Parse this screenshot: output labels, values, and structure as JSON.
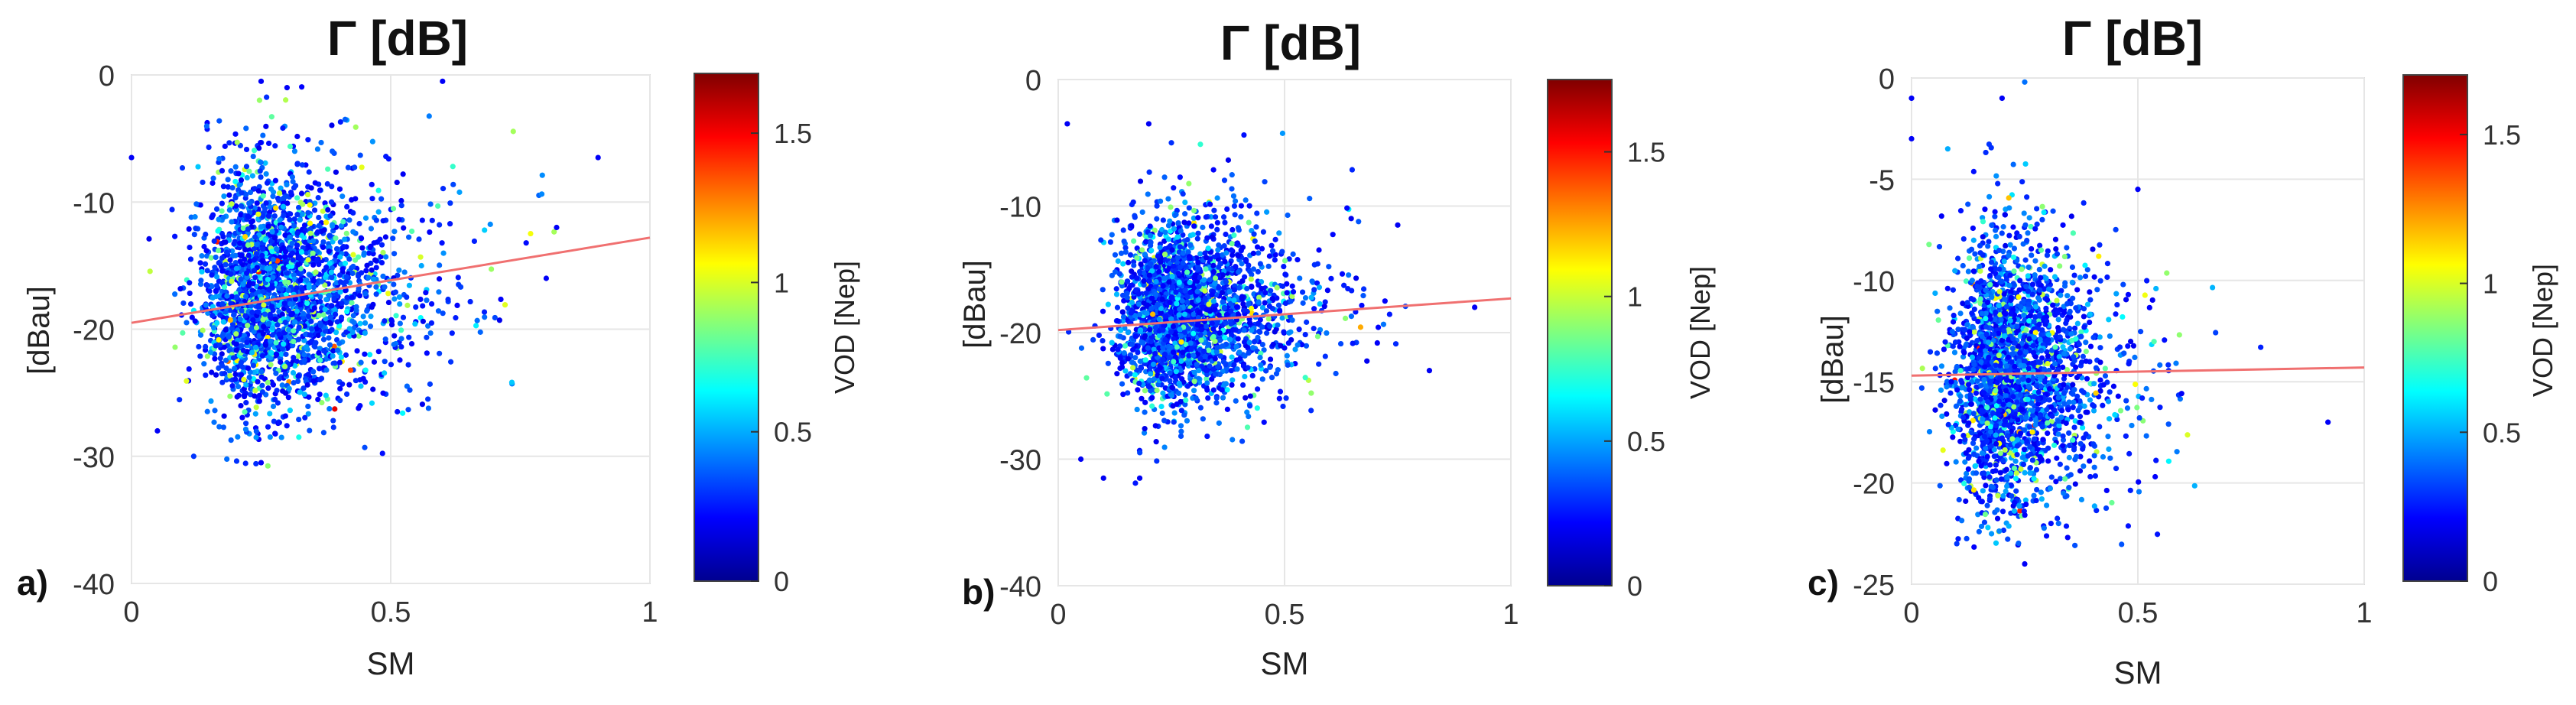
{
  "figure": {
    "panels": [
      {
        "letter": "a)",
        "title": "Γ [dB]",
        "xlabel": "SM",
        "ylabel": "[dBau]",
        "colorbar_label": "VOD [Nep]"
      },
      {
        "letter": "b)",
        "title": "Γ [dB]",
        "xlabel": "SM",
        "ylabel": "[dBau]",
        "colorbar_label": "VOD [Nep]"
      },
      {
        "letter": "c)",
        "title": "Γ [dB]",
        "xlabel": "SM",
        "ylabel": "[dBau]",
        "colorbar_label": "VOD [Nep]"
      }
    ]
  },
  "chart_data": [
    {
      "type": "scatter",
      "title": "Γ [dB]",
      "xlabel": "SM",
      "ylabel": "[dBau]",
      "xlim": [
        0,
        1
      ],
      "ylim": [
        -40,
        0
      ],
      "xticks": [
        0,
        0.5,
        1
      ],
      "yticks": [
        0,
        -10,
        -20,
        -30,
        -40
      ],
      "grid": true,
      "colorbar": {
        "label": "VOD [Nep]",
        "range": [
          0,
          1.7
        ],
        "ticks": [
          0,
          0.5,
          1,
          1.5
        ],
        "colormap": "jet"
      },
      "cloud": {
        "x_center": 0.2,
        "x_spread": 0.13,
        "y_center": -17,
        "y_spread": 4.5,
        "x_max": 0.9,
        "y_min": -31,
        "y_max": 0
      },
      "fit_line": {
        "x": [
          0,
          1
        ],
        "y": [
          -19.5,
          -12.8
        ],
        "color": "#f07070"
      },
      "points": [
        {
          "x": 0.25,
          "y": -0.5,
          "c": 0.2
        },
        {
          "x": 0.3,
          "y": -1,
          "c": 0.2
        },
        {
          "x": 0.6,
          "y": -0.5,
          "c": 0.2
        },
        {
          "x": 0.9,
          "y": -6.5,
          "c": 0.2
        },
        {
          "x": 0.82,
          "y": -12,
          "c": 0.2
        },
        {
          "x": 0.8,
          "y": -16,
          "c": 0.2
        },
        {
          "x": 0.25,
          "y": -30.5,
          "c": 0.2
        },
        {
          "x": 0.12,
          "y": -30,
          "c": 0.3
        },
        {
          "x": 0.05,
          "y": -28,
          "c": 0.2
        },
        {
          "x": 0.0,
          "y": -6.5,
          "c": 0.2
        }
      ]
    },
    {
      "type": "scatter",
      "title": "Γ [dB]",
      "xlabel": "SM",
      "ylabel": "[dBau]",
      "xlim": [
        0,
        1
      ],
      "ylim": [
        -40,
        0
      ],
      "xticks": [
        0,
        0.5,
        1
      ],
      "yticks": [
        0,
        -10,
        -20,
        -30,
        -40
      ],
      "grid": true,
      "colorbar": {
        "label": "VOD [Nep]",
        "range": [
          0,
          1.75
        ],
        "ticks": [
          0,
          0.5,
          1,
          1.5
        ],
        "colormap": "jet"
      },
      "cloud": {
        "x_center": 0.2,
        "x_spread": 0.12,
        "y_center": -18.5,
        "y_spread": 3.3,
        "x_max": 0.97,
        "y_min": -32,
        "y_max": -3
      },
      "fit_line": {
        "x": [
          0,
          1
        ],
        "y": [
          -19.8,
          -17.3
        ],
        "color": "#f07070"
      },
      "points": [
        {
          "x": 0.02,
          "y": -3.5,
          "c": 0.2
        },
        {
          "x": 0.2,
          "y": -3.5,
          "c": 0.2
        },
        {
          "x": 0.25,
          "y": -5,
          "c": 0.3
        },
        {
          "x": 0.1,
          "y": -31.5,
          "c": 0.2
        },
        {
          "x": 0.18,
          "y": -31.5,
          "c": 0.2
        },
        {
          "x": 0.05,
          "y": -30,
          "c": 0.2
        },
        {
          "x": 0.92,
          "y": -18,
          "c": 0.2
        },
        {
          "x": 0.75,
          "y": -11.5,
          "c": 0.2
        },
        {
          "x": 0.82,
          "y": -23,
          "c": 0.2
        }
      ]
    },
    {
      "type": "scatter",
      "title": "Γ [dB]",
      "xlabel": "SM",
      "ylabel": "[dBau]",
      "xlim": [
        0,
        1
      ],
      "ylim": [
        -25,
        0
      ],
      "xticks": [
        0,
        0.5,
        1
      ],
      "yticks": [
        0,
        -5,
        -10,
        -15,
        -20,
        -25
      ],
      "grid": true,
      "colorbar": {
        "label": "VOD [Nep]",
        "range": [
          0,
          1.7
        ],
        "ticks": [
          0,
          0.5,
          1,
          1.5
        ],
        "colormap": "jet"
      },
      "cloud": {
        "x_center": 0.15,
        "x_spread": 0.11,
        "y_center": -14.5,
        "y_spread": 3.0,
        "x_max": 0.92,
        "y_min": -24.5,
        "y_max": 0
      },
      "fit_line": {
        "x": [
          0,
          1
        ],
        "y": [
          -14.7,
          -14.3
        ],
        "color": "#f07070"
      },
      "points": [
        {
          "x": 0.0,
          "y": -1,
          "c": 0.2
        },
        {
          "x": 0.2,
          "y": -1,
          "c": 0.2
        },
        {
          "x": 0.25,
          "y": -0.2,
          "c": 0.4
        },
        {
          "x": 0.08,
          "y": -3.5,
          "c": 0.5
        },
        {
          "x": 0.0,
          "y": -3,
          "c": 0.2
        },
        {
          "x": 0.92,
          "y": -17,
          "c": 0.2
        },
        {
          "x": 0.5,
          "y": -5.5,
          "c": 0.2
        },
        {
          "x": 0.25,
          "y": -24,
          "c": 0.2
        },
        {
          "x": 0.1,
          "y": -23,
          "c": 0.3
        }
      ]
    }
  ]
}
